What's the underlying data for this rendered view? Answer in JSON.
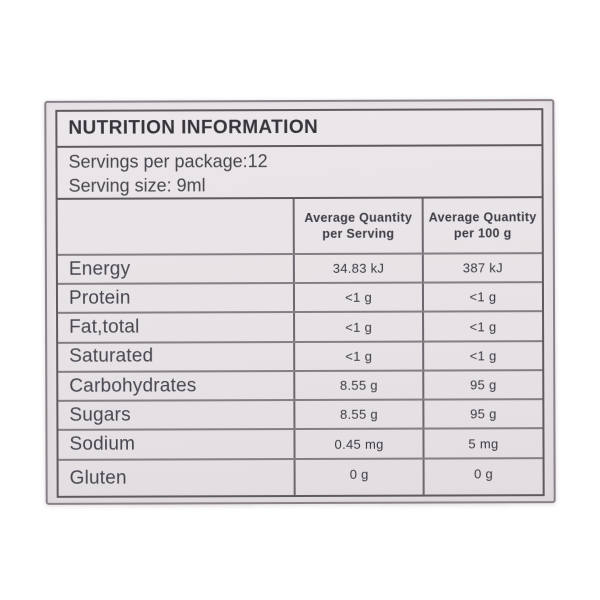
{
  "label": {
    "title": "NUTRITION INFORMATION",
    "servings_per_package": "Servings per package:12",
    "serving_size": "Serving size: 9ml"
  },
  "table": {
    "header": {
      "per_serving_line1": "Average Quantity",
      "per_serving_line2": "per Serving",
      "per_100g_line1": "Average Quantity",
      "per_100g_line2": "per 100 g"
    },
    "rows": [
      {
        "nutrient": "Energy",
        "per_serving": "34.83 kJ",
        "per_100g": "387 kJ"
      },
      {
        "nutrient": "Protein",
        "per_serving": "<1 g",
        "per_100g": "<1 g"
      },
      {
        "nutrient": "Fat,total",
        "per_serving": "<1 g",
        "per_100g": "<1 g"
      },
      {
        "nutrient": "Saturated",
        "per_serving": "<1 g",
        "per_100g": "<1 g"
      },
      {
        "nutrient": "Carbohydrates",
        "per_serving": "8.55 g",
        "per_100g": "95 g"
      },
      {
        "nutrient": "Sugars",
        "per_serving": "8.55 g",
        "per_100g": "95 g"
      },
      {
        "nutrient": "Sodium",
        "per_serving": "0.45 mg",
        "per_100g": "5 mg"
      },
      {
        "nutrient": "Gluten",
        "per_serving": "0 g",
        "per_100g": "0 g"
      }
    ]
  },
  "colors": {
    "label_background": "#e7e3e6",
    "border_dark": "#5f5a60",
    "border_row": "#847e85",
    "text_primary": "#46424a",
    "page_background": "#ffffff"
  }
}
